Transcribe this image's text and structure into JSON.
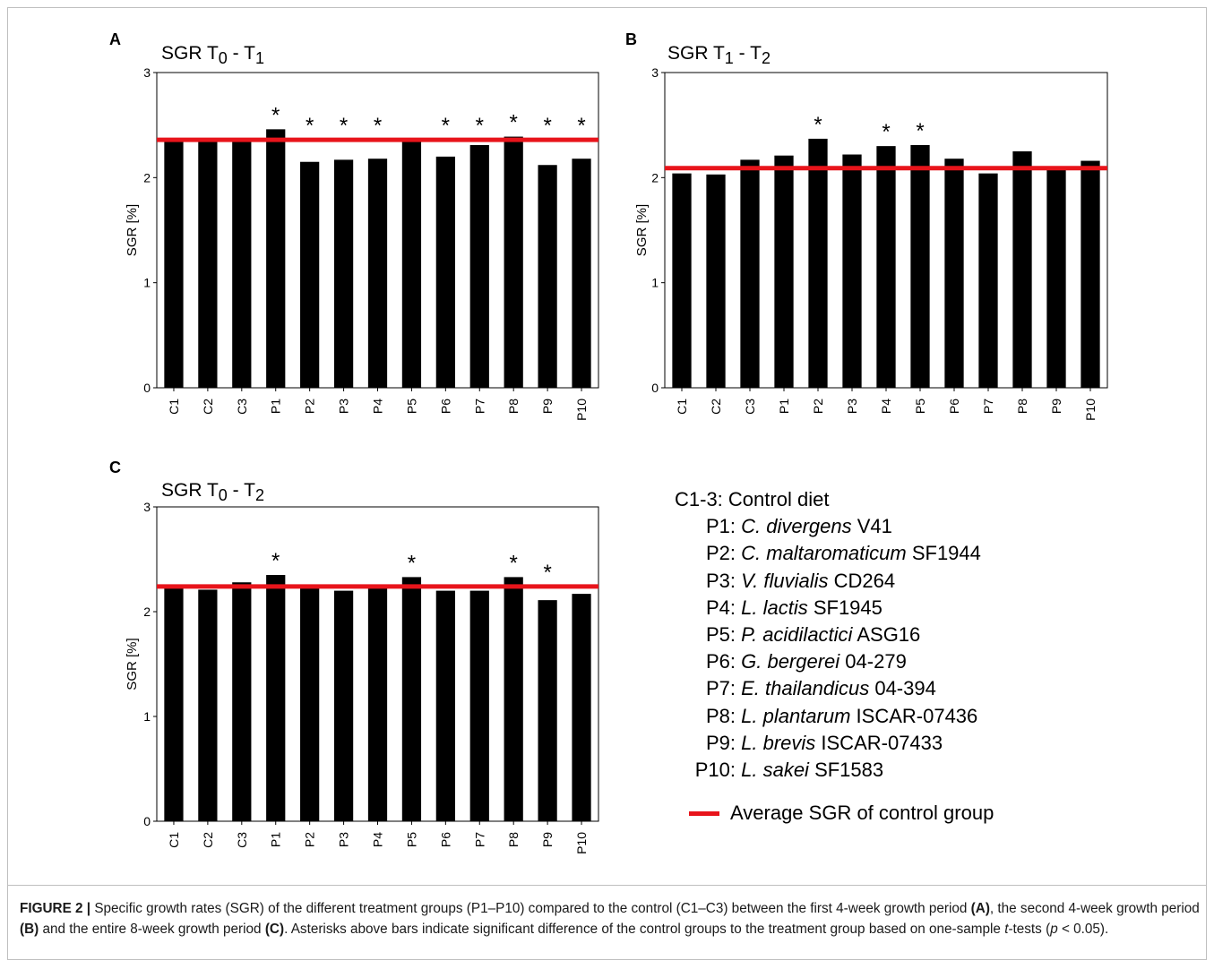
{
  "chart_data": [
    {
      "type": "bar",
      "panel": "A",
      "title": "SGR T",
      "title_sub1": "0",
      "title_mid": " - T",
      "title_sub2": "1",
      "ylabel": "SGR [%]",
      "ylim": [
        0,
        3
      ],
      "yticks": [
        0,
        1,
        2,
        3
      ],
      "categories": [
        "C1",
        "C2",
        "C3",
        "P1",
        "P2",
        "P3",
        "P4",
        "P5",
        "P6",
        "P7",
        "P8",
        "P9",
        "P10"
      ],
      "values": [
        2.35,
        2.34,
        2.37,
        2.46,
        2.15,
        2.17,
        2.18,
        2.36,
        2.2,
        2.31,
        2.39,
        2.12,
        2.18
      ],
      "significant": [
        false,
        false,
        false,
        true,
        true,
        true,
        true,
        false,
        true,
        true,
        true,
        true,
        true
      ],
      "reference_line": 2.36,
      "reference_color": "#e8141b"
    },
    {
      "type": "bar",
      "panel": "B",
      "title": "SGR T",
      "title_sub1": "1",
      "title_mid": " - T",
      "title_sub2": "2",
      "ylabel": "SGR [%]",
      "ylim": [
        0,
        3
      ],
      "yticks": [
        0,
        1,
        2,
        3
      ],
      "categories": [
        "C1",
        "C2",
        "C3",
        "P1",
        "P2",
        "P3",
        "P4",
        "P5",
        "P6",
        "P7",
        "P8",
        "P9",
        "P10"
      ],
      "values": [
        2.04,
        2.03,
        2.17,
        2.21,
        2.37,
        2.22,
        2.3,
        2.31,
        2.18,
        2.04,
        2.25,
        2.09,
        2.16
      ],
      "significant": [
        false,
        false,
        false,
        false,
        true,
        false,
        true,
        true,
        false,
        false,
        false,
        false,
        false
      ],
      "reference_line": 2.09,
      "reference_color": "#e8141b"
    },
    {
      "type": "bar",
      "panel": "C",
      "title": "SGR T",
      "title_sub1": "0",
      "title_mid": " - T",
      "title_sub2": "2",
      "ylabel": "SGR [%]",
      "ylim": [
        0,
        3
      ],
      "yticks": [
        0,
        1,
        2,
        3
      ],
      "categories": [
        "C1",
        "C2",
        "C3",
        "P1",
        "P2",
        "P3",
        "P4",
        "P5",
        "P6",
        "P7",
        "P8",
        "P9",
        "P10"
      ],
      "values": [
        2.23,
        2.21,
        2.28,
        2.35,
        2.24,
        2.2,
        2.24,
        2.33,
        2.2,
        2.2,
        2.33,
        2.11,
        2.17
      ],
      "significant": [
        false,
        false,
        false,
        true,
        false,
        false,
        false,
        true,
        false,
        false,
        true,
        true,
        false
      ],
      "reference_line": 2.24,
      "reference_color": "#e8141b"
    }
  ],
  "legend": {
    "entries": [
      {
        "code": "C1-3:",
        "species": "",
        "strain": "Control diet"
      },
      {
        "code": "P1:",
        "species": "C. divergens",
        "strain": " V41"
      },
      {
        "code": "P2:",
        "species": "C. maltaromaticum",
        "strain": " SF1944"
      },
      {
        "code": "P3:",
        "species": "V. fluvialis",
        "strain": " CD264"
      },
      {
        "code": "P4:",
        "species": "L. lactis",
        "strain": " SF1945"
      },
      {
        "code": "P5:",
        "species": "P. acidilactici",
        "strain": " ASG16"
      },
      {
        "code": "P6:",
        "species": "G. bergerei",
        "strain": " 04-279"
      },
      {
        "code": "P7:",
        "species": "E. thailandicus",
        "strain": " 04-394"
      },
      {
        "code": "P8:",
        "species": "L. plantarum",
        "strain": " ISCAR-07436"
      },
      {
        "code": "P9:",
        "species": "L. brevis",
        "strain": " ISCAR-07433"
      },
      {
        "code": "P10:",
        "species": "L. sakei",
        "strain": " SF1583"
      }
    ],
    "average_label": "Average SGR of control group"
  },
  "caption": {
    "figure_label": "FIGURE 2 | ",
    "part1": "Specific growth rates (SGR) of the different treatment groups (P1–P10) compared to the control (C1–C3) between the first 4-week growth period ",
    "refA": "(A)",
    "part2": ", the second 4-week growth period ",
    "refB": "(B)",
    "part3": " and the entire 8-week growth period ",
    "refC": "(C)",
    "part4": ". Asterisks above bars indicate significant difference of the control groups to the treatment group based on one-sample ",
    "t": "t",
    "part5": "-tests (",
    "p": "p",
    "part6": " < 0.05)."
  }
}
